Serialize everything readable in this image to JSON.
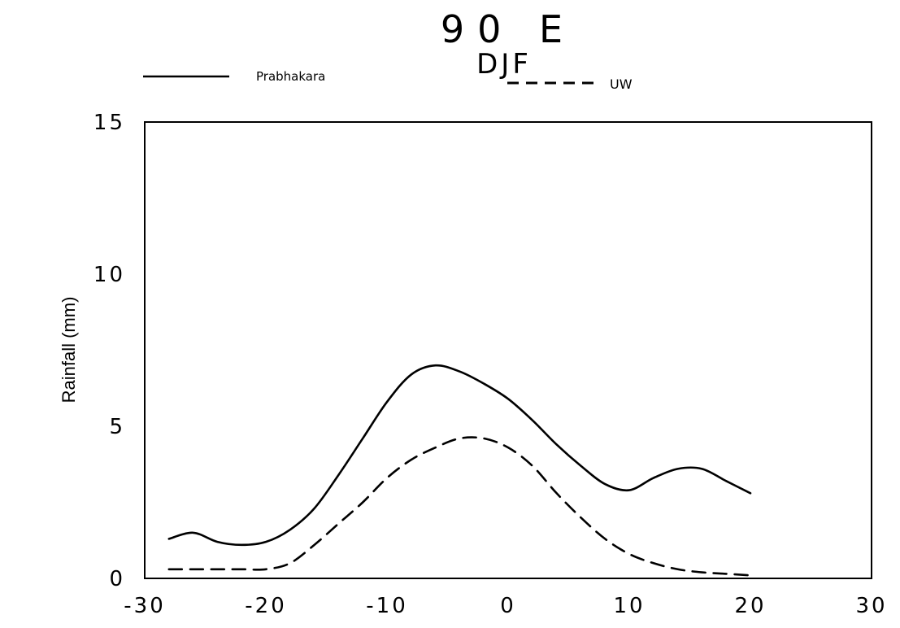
{
  "chart_data": {
    "type": "line",
    "title": "90 E",
    "subtitle": "DJF",
    "xlabel": "",
    "ylabel": "Rainfall (mm)",
    "xlim": [
      -30,
      30
    ],
    "ylim": [
      0,
      15
    ],
    "x_ticks": [
      -30,
      -20,
      -10,
      0,
      10,
      20,
      30
    ],
    "y_ticks": [
      0,
      5,
      10,
      15
    ],
    "x_tick_labels": [
      "-30",
      "-20",
      "-10",
      "0",
      "10",
      "20",
      "30"
    ],
    "y_tick_labels": [
      "0",
      "5",
      "10",
      "15"
    ],
    "grid": false,
    "legend": {
      "placement": "top",
      "items": [
        {
          "label": "Prabhakara",
          "style": "solid"
        },
        {
          "label": "UW",
          "style": "dashed"
        }
      ]
    },
    "series": [
      {
        "name": "Prabhakara",
        "style": "solid",
        "color": "#000000",
        "x": [
          -28,
          -26,
          -24,
          -22,
          -20,
          -18,
          -16,
          -14,
          -12,
          -10,
          -8,
          -6,
          -4,
          -2,
          0,
          2,
          4,
          6,
          8,
          10,
          12,
          14,
          16,
          18,
          20
        ],
        "y": [
          1.3,
          1.5,
          1.2,
          1.1,
          1.2,
          1.6,
          2.3,
          3.4,
          4.6,
          5.8,
          6.7,
          7.0,
          6.8,
          6.4,
          5.9,
          5.2,
          4.4,
          3.7,
          3.1,
          2.9,
          3.3,
          3.6,
          3.6,
          3.2,
          2.8
        ]
      },
      {
        "name": "UW",
        "style": "dashed",
        "color": "#000000",
        "x": [
          -28,
          -26,
          -24,
          -22,
          -20,
          -18,
          -16,
          -14,
          -12,
          -10,
          -8,
          -6,
          -4,
          -2,
          0,
          2,
          4,
          6,
          8,
          10,
          12,
          14,
          16,
          18,
          20
        ],
        "y": [
          0.3,
          0.3,
          0.3,
          0.3,
          0.3,
          0.5,
          1.1,
          1.8,
          2.5,
          3.3,
          3.9,
          4.3,
          4.6,
          4.6,
          4.3,
          3.7,
          2.8,
          2.0,
          1.3,
          0.8,
          0.5,
          0.3,
          0.2,
          0.15,
          0.1
        ]
      }
    ]
  }
}
